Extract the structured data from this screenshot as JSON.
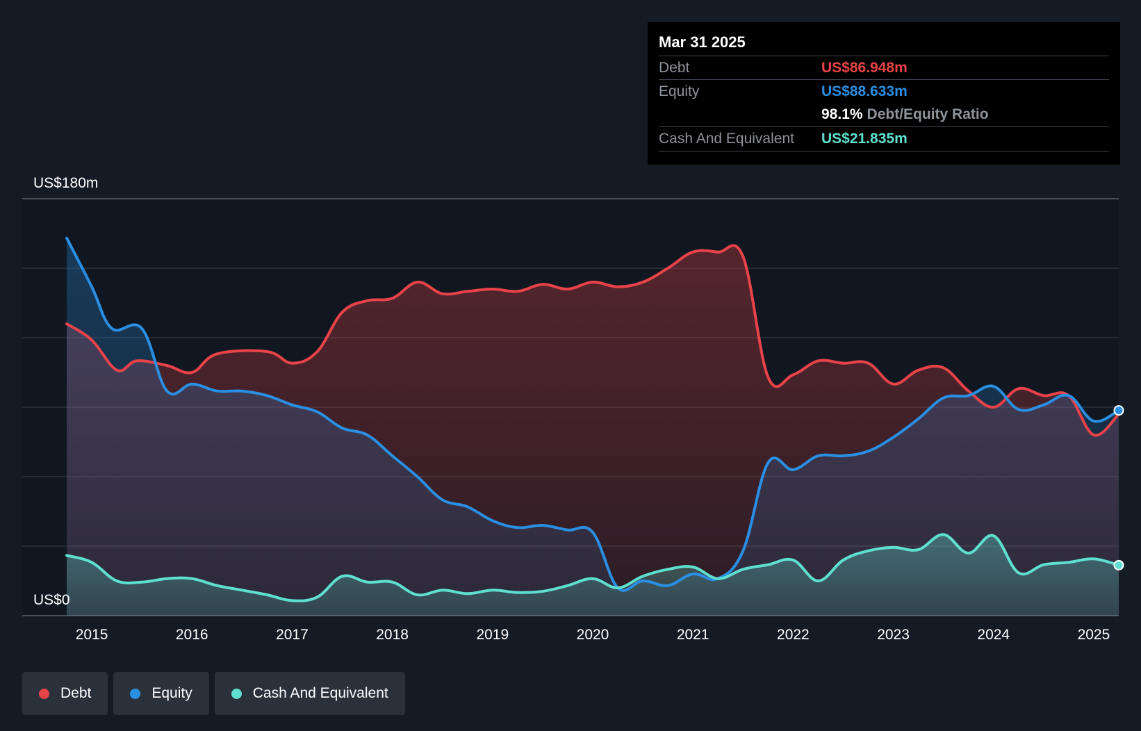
{
  "chart_data": {
    "type": "area",
    "y_top_label": "US$180m",
    "y_bottom_label": "US$0",
    "ylim": [
      0,
      180
    ],
    "xlim": [
      2014.75,
      2025.25
    ],
    "x_ticks": [
      "2015",
      "2016",
      "2017",
      "2018",
      "2019",
      "2020",
      "2021",
      "2022",
      "2023",
      "2024",
      "2025"
    ],
    "series": [
      {
        "name": "Debt",
        "color": "#e84349",
        "points": [
          [
            2014.75,
            126
          ],
          [
            2015.0,
            119
          ],
          [
            2015.25,
            106
          ],
          [
            2015.45,
            110
          ],
          [
            2015.75,
            108
          ],
          [
            2016.0,
            105
          ],
          [
            2016.25,
            113
          ],
          [
            2016.75,
            114
          ],
          [
            2017.0,
            109
          ],
          [
            2017.25,
            114
          ],
          [
            2017.5,
            131
          ],
          [
            2017.75,
            136
          ],
          [
            2018.0,
            137
          ],
          [
            2018.25,
            144
          ],
          [
            2018.5,
            139
          ],
          [
            2018.75,
            140
          ],
          [
            2019.0,
            141
          ],
          [
            2019.25,
            140
          ],
          [
            2019.5,
            143
          ],
          [
            2019.75,
            141
          ],
          [
            2020.0,
            144
          ],
          [
            2020.25,
            142
          ],
          [
            2020.5,
            144
          ],
          [
            2020.75,
            150
          ],
          [
            2021.0,
            157
          ],
          [
            2021.25,
            157
          ],
          [
            2021.5,
            155
          ],
          [
            2021.75,
            103
          ],
          [
            2022.0,
            104
          ],
          [
            2022.25,
            110
          ],
          [
            2022.5,
            109
          ],
          [
            2022.75,
            109
          ],
          [
            2023.0,
            100
          ],
          [
            2023.25,
            106
          ],
          [
            2023.5,
            107
          ],
          [
            2023.75,
            97
          ],
          [
            2024.0,
            90
          ],
          [
            2024.25,
            98
          ],
          [
            2024.5,
            95
          ],
          [
            2024.75,
            95
          ],
          [
            2025.0,
            78
          ],
          [
            2025.25,
            87
          ]
        ]
      },
      {
        "name": "Equity",
        "color": "#2a8fe3",
        "points": [
          [
            2014.75,
            163
          ],
          [
            2015.0,
            142
          ],
          [
            2015.2,
            124
          ],
          [
            2015.5,
            124
          ],
          [
            2015.75,
            97
          ],
          [
            2016.0,
            100
          ],
          [
            2016.25,
            97
          ],
          [
            2016.5,
            97
          ],
          [
            2016.75,
            95
          ],
          [
            2017.0,
            91
          ],
          [
            2017.25,
            88
          ],
          [
            2017.5,
            81
          ],
          [
            2017.75,
            78
          ],
          [
            2018.0,
            69
          ],
          [
            2018.25,
            60
          ],
          [
            2018.5,
            50
          ],
          [
            2018.75,
            47
          ],
          [
            2019.0,
            41
          ],
          [
            2019.25,
            38
          ],
          [
            2019.5,
            39
          ],
          [
            2019.75,
            37
          ],
          [
            2020.0,
            36
          ],
          [
            2020.25,
            12
          ],
          [
            2020.5,
            15
          ],
          [
            2020.75,
            13
          ],
          [
            2021.0,
            18
          ],
          [
            2021.25,
            16
          ],
          [
            2021.5,
            28
          ],
          [
            2021.75,
            66
          ],
          [
            2022.0,
            63
          ],
          [
            2022.25,
            69
          ],
          [
            2022.5,
            69
          ],
          [
            2022.75,
            71
          ],
          [
            2023.0,
            77
          ],
          [
            2023.25,
            85
          ],
          [
            2023.5,
            94
          ],
          [
            2023.75,
            95
          ],
          [
            2024.0,
            99
          ],
          [
            2024.25,
            89
          ],
          [
            2024.5,
            91
          ],
          [
            2024.75,
            95
          ],
          [
            2025.0,
            84
          ],
          [
            2025.25,
            88.6
          ]
        ]
      },
      {
        "name": "Cash And Equivalent",
        "color": "#5fe0cf",
        "points": [
          [
            2014.75,
            26
          ],
          [
            2015.0,
            23
          ],
          [
            2015.25,
            15
          ],
          [
            2015.5,
            14.5
          ],
          [
            2015.75,
            16
          ],
          [
            2016.0,
            16
          ],
          [
            2016.25,
            13
          ],
          [
            2016.5,
            11
          ],
          [
            2016.75,
            9
          ],
          [
            2017.0,
            6.5
          ],
          [
            2017.25,
            8
          ],
          [
            2017.5,
            17
          ],
          [
            2017.75,
            14.5
          ],
          [
            2018.0,
            14.5
          ],
          [
            2018.25,
            9
          ],
          [
            2018.5,
            11
          ],
          [
            2018.75,
            9.5
          ],
          [
            2019.0,
            11
          ],
          [
            2019.25,
            10
          ],
          [
            2019.5,
            10.5
          ],
          [
            2019.75,
            13
          ],
          [
            2020.0,
            16
          ],
          [
            2020.25,
            12
          ],
          [
            2020.5,
            17
          ],
          [
            2020.75,
            20
          ],
          [
            2021.0,
            21
          ],
          [
            2021.25,
            16
          ],
          [
            2021.5,
            20
          ],
          [
            2021.75,
            22
          ],
          [
            2022.0,
            24
          ],
          [
            2022.25,
            15
          ],
          [
            2022.5,
            24
          ],
          [
            2022.75,
            28
          ],
          [
            2023.0,
            29.5
          ],
          [
            2023.25,
            28.5
          ],
          [
            2023.5,
            35
          ],
          [
            2023.75,
            27
          ],
          [
            2024.0,
            34.5
          ],
          [
            2024.25,
            18.5
          ],
          [
            2024.5,
            22
          ],
          [
            2024.75,
            23
          ],
          [
            2025.0,
            24.5
          ],
          [
            2025.25,
            21.8
          ]
        ]
      }
    ],
    "grid": true,
    "legend_position": "bottom-left"
  },
  "tooltip": {
    "date": "Mar 31 2025",
    "debt_label": "Debt",
    "debt_value": "US$86.948m",
    "equity_label": "Equity",
    "equity_value": "US$88.633m",
    "ratio_value": "98.1%",
    "ratio_label": "Debt/Equity Ratio",
    "cash_label": "Cash And Equivalent",
    "cash_value": "US$21.835m"
  },
  "legend": {
    "debt": "Debt",
    "equity": "Equity",
    "cash": "Cash And Equivalent"
  },
  "colors": {
    "debt": "#e84349",
    "equity": "#2a8fe3",
    "cash": "#5fe0cf",
    "background": "#151b24"
  }
}
